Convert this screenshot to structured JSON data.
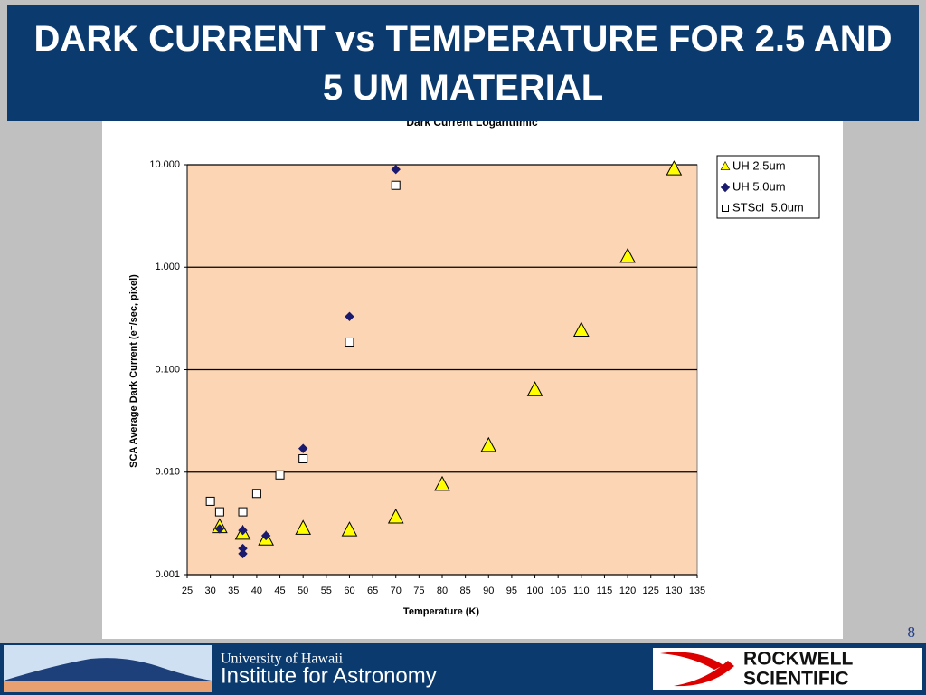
{
  "slide_title": "DARK CURRENT vs TEMPERATURE FOR 2.5 AND 5 UM MATERIAL",
  "page_number": "8",
  "footer": {
    "university": "University of Hawaii",
    "institute": "Institute for Astronomy",
    "company_line1": "ROCKWELL",
    "company_line2": "SCIENTIFIC"
  },
  "chart_data": {
    "type": "scatter",
    "title": "Dark Current Logarithmic",
    "x_label": "Temperature (K)",
    "y_label": "SCA Average Dark Current (e⁻/sec, pixel)",
    "xlim": [
      25,
      135
    ],
    "xticks": [
      25,
      30,
      35,
      40,
      45,
      50,
      55,
      60,
      65,
      70,
      75,
      80,
      85,
      90,
      95,
      100,
      105,
      110,
      115,
      120,
      125,
      130,
      135
    ],
    "ylim": [
      0.001,
      10
    ],
    "yticks": [
      {
        "value": 10,
        "label": "10.000"
      },
      {
        "value": 1,
        "label": "1.000"
      },
      {
        "value": 0.1,
        "label": "0.100"
      },
      {
        "value": 0.01,
        "label": "0.010"
      },
      {
        "value": 0.001,
        "label": "0.001"
      }
    ],
    "log_y": true,
    "grid": true,
    "legend": "upper right",
    "plot_background": "#fcd5b4",
    "series": [
      {
        "name": "UH 2.5um",
        "marker": "triangle",
        "color": "#ffff00",
        "x": [
          32,
          37,
          42,
          50,
          60,
          70,
          80,
          90,
          100,
          110,
          120,
          130
        ],
        "values": [
          0.0029,
          0.0025,
          0.0022,
          0.0028,
          0.0027,
          0.0036,
          0.0075,
          0.018,
          0.063,
          0.24,
          1.26,
          9.0
        ]
      },
      {
        "name": "UH 5.0um",
        "marker": "diamond",
        "color": "#1a1a6e",
        "x": [
          32,
          37,
          37,
          37,
          42,
          50,
          60,
          70
        ],
        "values": [
          0.0028,
          0.0027,
          0.0018,
          0.0016,
          0.0024,
          0.017,
          0.33,
          9.0
        ]
      },
      {
        "name": "STScI  5.0um",
        "marker": "square",
        "color": "#ffffff",
        "x": [
          30,
          32,
          37,
          40,
          45,
          50,
          60,
          70
        ],
        "values": [
          0.0052,
          0.0041,
          0.0041,
          0.0062,
          0.0094,
          0.0135,
          0.186,
          6.3
        ]
      }
    ]
  }
}
